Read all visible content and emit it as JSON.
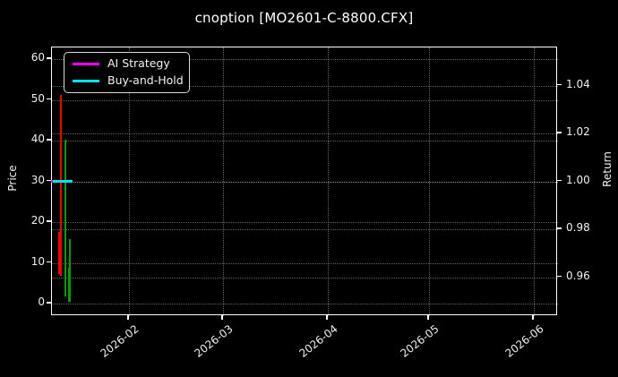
{
  "window": {
    "background": "#000000"
  },
  "chart_data": {
    "type": "candlestick",
    "title": "cnoption [MO2601-C-8800.CFX]",
    "left_axis": {
      "label": "Price",
      "ticks": [
        0,
        10,
        20,
        30,
        40,
        50,
        60
      ],
      "range_approx": [
        -3,
        63
      ]
    },
    "right_axis": {
      "label": "Return",
      "ticks": [
        "0.96",
        "0.98",
        "1.00",
        "1.02",
        "1.04"
      ],
      "range_approx": [
        0.944,
        1.056
      ]
    },
    "x_axis": {
      "tick_labels": [
        "2026-02",
        "2026-03",
        "2026-04",
        "2026-05",
        "2026-06"
      ],
      "label_rotation_deg": 38,
      "data_span_note": "candles clustered near mid-January 2026 at far left of axis"
    },
    "grid": {
      "on": true,
      "linestyle": "dotted",
      "color": "rgba(255,255,255,0.38)"
    },
    "legend": {
      "position": "upper-left",
      "entries": [
        {
          "label": "AI Strategy",
          "color": "#fa00fa"
        },
        {
          "label": "Buy-and-Hold",
          "color": "#00e5f0"
        }
      ]
    },
    "candles": [
      {
        "date": "2026-01-12",
        "direction": "down",
        "high": 51,
        "open": 17.5,
        "close": 7,
        "low": 6.8
      },
      {
        "date": "2026-01-13",
        "direction": "up",
        "high": 40,
        "open": 2,
        "close": 8.5,
        "low": 1.8
      },
      {
        "date": "2026-01-14",
        "direction": "up",
        "high": 16,
        "open": 0.5,
        "close": 8.8,
        "low": 0.4
      }
    ],
    "values_estimated_from_pixels": true,
    "lines": [
      {
        "name": "AI Strategy",
        "axis": "right",
        "color": "#fa00fa",
        "values": [
          1.0,
          1.0
        ],
        "note": "flat at 1.00, mostly hidden under Buy-and-Hold line"
      },
      {
        "name": "Buy-and-Hold",
        "axis": "right",
        "color": "#00e5f0",
        "values": [
          1.0,
          1.0
        ],
        "note": "flat at 1.00"
      }
    ],
    "colors": {
      "up_candle": "#00a000",
      "down_candle": "#f50000",
      "spine": "#ffffff",
      "text": "#efefef",
      "background": "#000000"
    }
  }
}
